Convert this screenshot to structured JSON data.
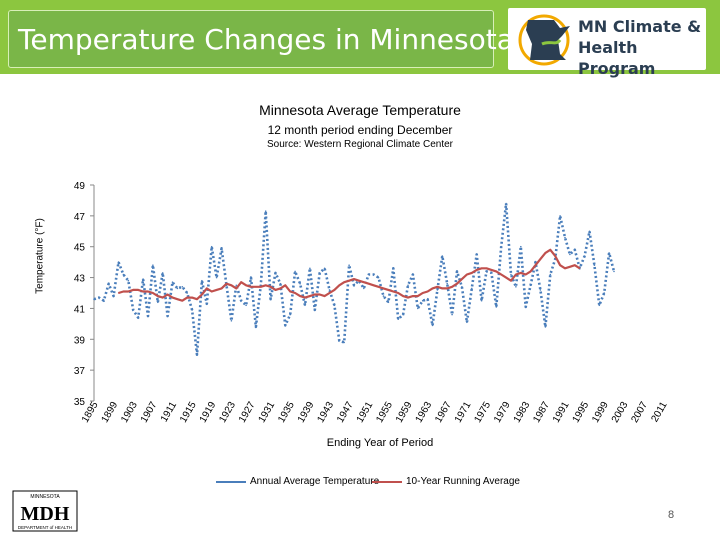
{
  "slide": {
    "title": "Temperature Changes in Minnesota",
    "logo_line1": "MN Climate &",
    "logo_line2": "Health Program",
    "page_number": "8",
    "mdh_logo_text": "MDH",
    "mdh_top_text": "MINNESOTA",
    "mdh_bottom_text": "DEPARTMENT of HEALTH"
  },
  "colors": {
    "annual": "#4a7ebb",
    "running": "#c0504d",
    "green": "#8cc63f"
  },
  "chart_data": {
    "type": "line",
    "title": "Minnesota Average Temperature",
    "subtitle": "12 month period ending December",
    "source": "Source: Western Regional Climate Center",
    "ylabel": "Temperature (°F)",
    "xlabel": "Ending Year of Period",
    "ylim": [
      35,
      49
    ],
    "yticks": [
      35,
      37,
      39,
      41,
      43,
      45,
      47,
      49
    ],
    "xticks": [
      1895,
      1899,
      1903,
      1907,
      1911,
      1915,
      1919,
      1923,
      1927,
      1931,
      1935,
      1939,
      1943,
      1947,
      1951,
      1955,
      1959,
      1963,
      1967,
      1971,
      1975,
      1979,
      1983,
      1987,
      1991,
      1995,
      1999,
      2003,
      2007,
      2011
    ],
    "legend": [
      "Annual Average Temperature",
      "10-Year Running Average"
    ],
    "x_start": 1895,
    "series": [
      {
        "name": "Annual Average Temperature",
        "values": [
          41.6,
          41.7,
          41.5,
          42.6,
          41.8,
          44.0,
          43.2,
          42.8,
          40.9,
          40.4,
          42.9,
          40.5,
          43.8,
          41.4,
          43.3,
          40.5,
          42.7,
          42.3,
          42.4,
          42.0,
          40.9,
          38.0,
          42.8,
          41.3,
          45.0,
          43.0,
          44.9,
          42.5,
          40.2,
          42.5,
          41.5,
          41.2,
          43.0,
          39.8,
          42.5,
          47.3,
          41.6,
          43.3,
          42.6,
          39.9,
          40.6,
          43.4,
          42.6,
          41.2,
          43.6,
          40.9,
          43.3,
          43.6,
          42.2,
          41.2,
          38.9,
          38.8,
          43.8,
          42.5,
          42.8,
          42.3,
          43.2,
          43.2,
          43.0,
          41.8,
          41.4,
          43.6,
          40.3,
          40.6,
          42.5,
          43.2,
          41.0,
          41.5,
          41.6,
          39.9,
          42.2,
          44.4,
          42.6,
          40.6,
          43.4,
          42.4,
          40.1,
          42.3,
          44.5,
          41.5,
          43.4,
          43.3,
          41.1,
          45.0,
          47.8,
          43.2,
          42.4,
          45.0,
          41.1,
          42.5,
          44.0,
          42.2,
          39.8,
          43.2,
          44.2,
          47.0,
          45.6,
          44.5,
          44.8,
          43.6,
          44.4,
          46.0,
          43.8,
          41.2,
          42.0,
          44.6,
          43.4
        ]
      },
      {
        "name": "10-Year Running Average",
        "start_year": 1900,
        "values": [
          42.0,
          42.1,
          42.1,
          42.2,
          42.2,
          42.1,
          42.1,
          42.0,
          41.8,
          41.7,
          41.9,
          41.7,
          41.6,
          41.5,
          41.7,
          41.7,
          41.6,
          41.9,
          42.3,
          42.1,
          42.2,
          42.3,
          42.6,
          42.5,
          42.3,
          42.7,
          42.5,
          42.4,
          42.4,
          42.4,
          42.5,
          42.4,
          42.2,
          42.3,
          42.5,
          42.1,
          42.0,
          41.8,
          41.7,
          41.8,
          41.9,
          41.9,
          41.8,
          42.0,
          42.2,
          42.5,
          42.7,
          42.8,
          42.9,
          42.8,
          42.7,
          42.6,
          42.5,
          42.4,
          42.3,
          42.2,
          42.1,
          42.0,
          41.8,
          41.7,
          41.8,
          41.8,
          42.0,
          42.1,
          42.3,
          42.4,
          42.3,
          42.3,
          42.4,
          42.6,
          42.9,
          43.2,
          43.3,
          43.5,
          43.6,
          43.6,
          43.5,
          43.4,
          43.2,
          43.0,
          42.8,
          43.2,
          43.3,
          43.2,
          43.4,
          43.8,
          44.2,
          44.6,
          44.8,
          44.4,
          43.8,
          43.6,
          43.7,
          43.8,
          43.6
        ]
      }
    ]
  }
}
